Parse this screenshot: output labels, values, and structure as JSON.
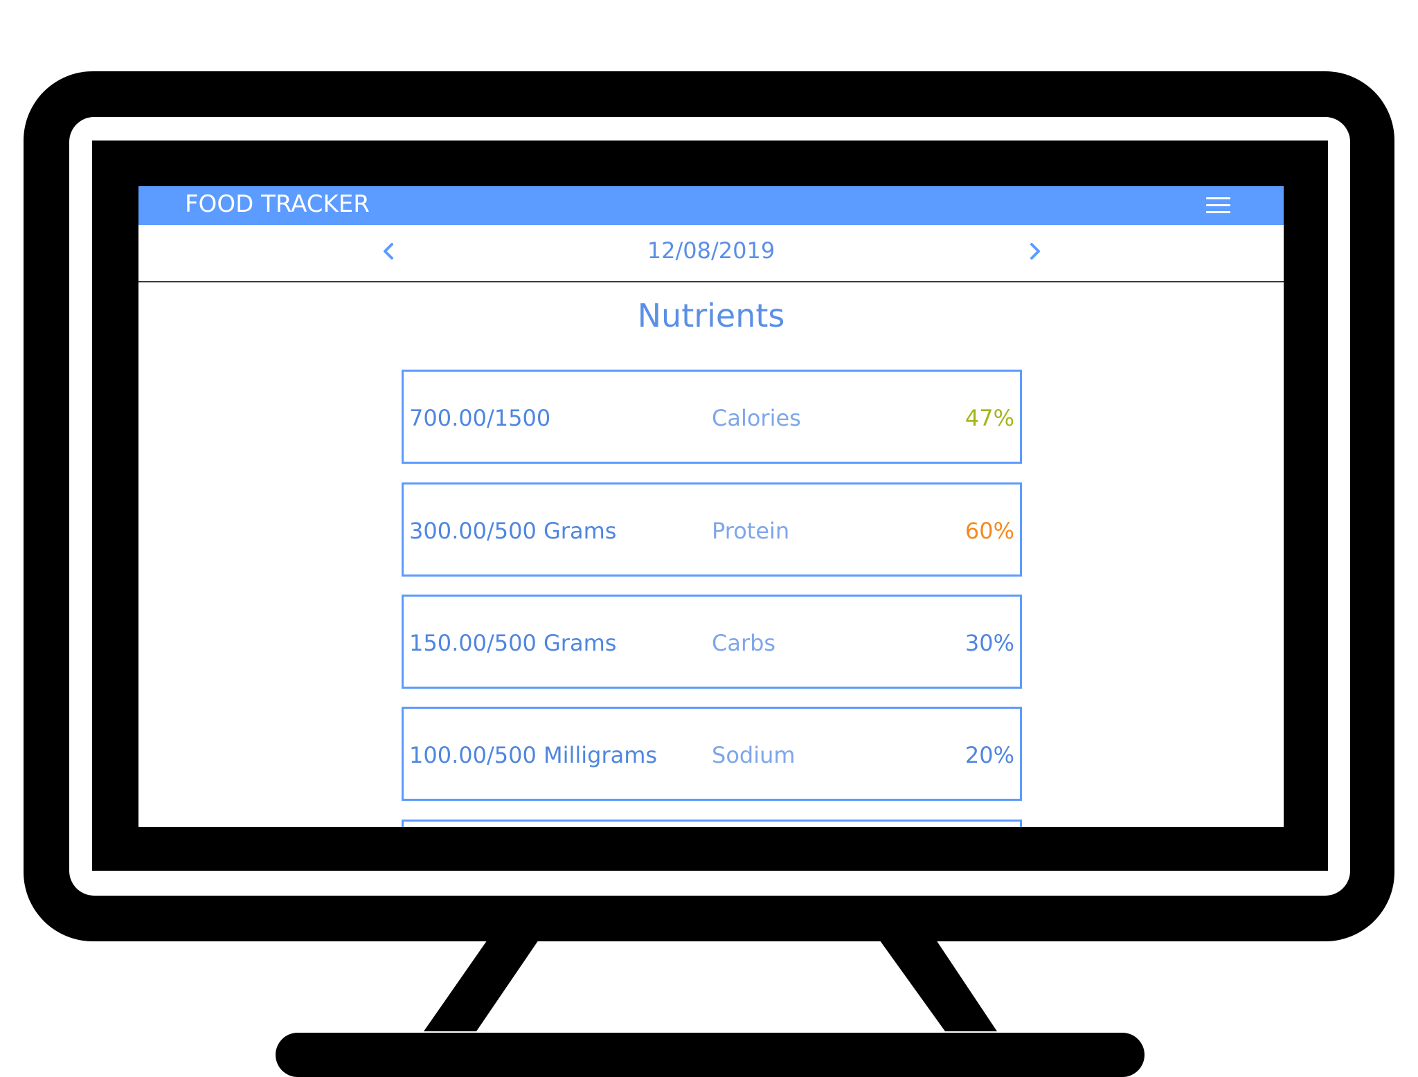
{
  "app": {
    "title": "FOOD TRACKER"
  },
  "date_nav": {
    "date": "12/08/2019"
  },
  "section": {
    "title": "Nutrients"
  },
  "nutrients": [
    {
      "amount": "700.00/1500",
      "name": "Calories",
      "percent": "47%",
      "percent_color": "#a3b519"
    },
    {
      "amount": "300.00/500 Grams",
      "name": "Protein",
      "percent": "60%",
      "percent_color": "#f5891f"
    },
    {
      "amount": "150.00/500 Grams",
      "name": "Carbs",
      "percent": "30%",
      "percent_color": "#4f86e0"
    },
    {
      "amount": "100.00/500 Milligrams",
      "name": "Sodium",
      "percent": "20%",
      "percent_color": "#4f86e0"
    }
  ],
  "colors": {
    "accent": "#5c9bff",
    "text_blue": "#4f86e0",
    "frame": "#000000"
  },
  "icons": {
    "menu": "hamburger-menu-icon",
    "prev": "chevron-left-icon",
    "next": "chevron-right-icon"
  }
}
